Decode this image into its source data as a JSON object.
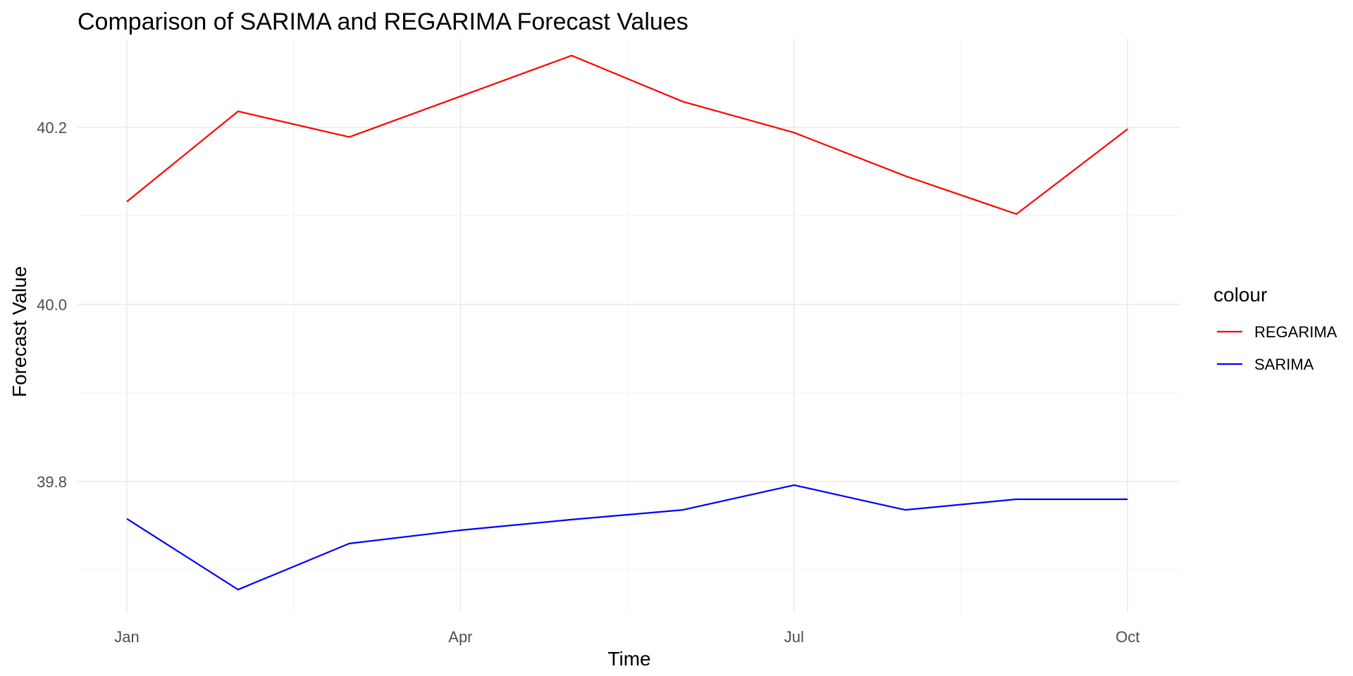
{
  "chart_data": {
    "type": "line",
    "title": "Comparison of SARIMA and REGARIMA Forecast Values",
    "xlabel": "Time",
    "ylabel": "Forecast Value",
    "x": [
      "Jan",
      "Feb",
      "Mar",
      "Apr",
      "May",
      "Jun",
      "Jul",
      "Aug",
      "Sep",
      "Oct"
    ],
    "x_ticks": [
      "Jan",
      "Apr",
      "Jul",
      "Oct"
    ],
    "y_ticks": [
      "39.8",
      "40.0",
      "40.2"
    ],
    "ylim": [
      39.652,
      40.3
    ],
    "grid": true,
    "legend": {
      "title": "colour",
      "position": "right"
    },
    "series": [
      {
        "name": "REGARIMA",
        "color": "#ff0000",
        "values": [
          40.116,
          40.218,
          40.189,
          40.235,
          40.281,
          40.229,
          40.194,
          40.145,
          40.102,
          40.198
        ]
      },
      {
        "name": "SARIMA",
        "color": "#0000ff",
        "values": [
          39.758,
          39.678,
          39.73,
          39.745,
          39.757,
          39.768,
          39.796,
          39.768,
          39.78,
          39.78
        ]
      }
    ]
  }
}
